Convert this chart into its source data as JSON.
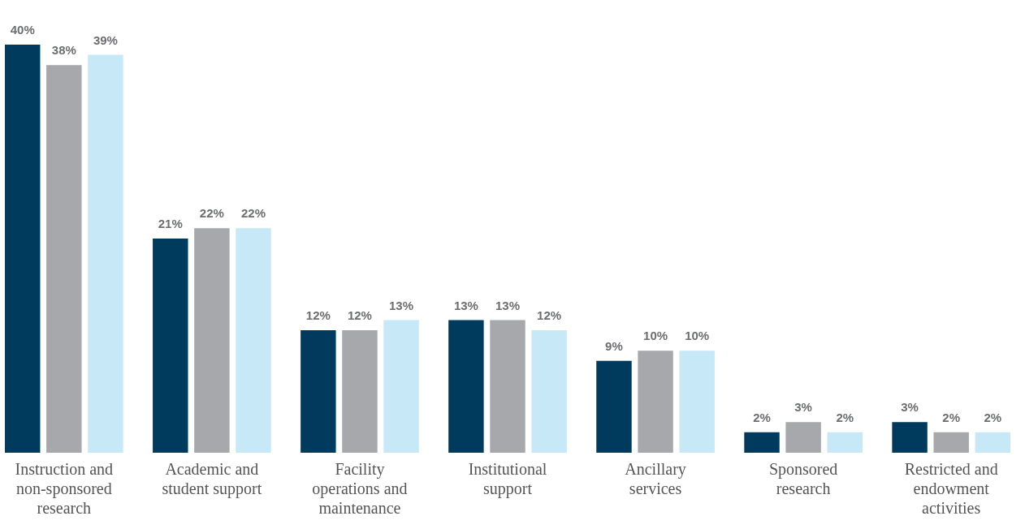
{
  "chart_data": {
    "type": "bar",
    "categories": [
      "Instruction and non-sponsored research",
      "Academic and student support",
      "Facility operations and maintenance",
      "Institutional support",
      "Ancillary services",
      "Sponsored research",
      "Restricted and endowment activities"
    ],
    "series": [
      {
        "color": "#003a5d",
        "values": [
          40,
          21,
          12,
          13,
          9,
          2,
          3
        ],
        "value_labels": [
          "40%",
          "21%",
          "12%",
          "13%",
          "9%",
          "2%",
          "3%"
        ]
      },
      {
        "color": "#a7a8ab",
        "values": [
          38,
          22,
          12,
          13,
          10,
          3,
          2
        ],
        "value_labels": [
          "38%",
          "22%",
          "12%",
          "13%",
          "10%",
          "3%",
          "2%"
        ]
      },
      {
        "color": "#c6e8f7",
        "values": [
          39,
          22,
          13,
          12,
          10,
          2,
          2
        ],
        "value_labels": [
          "39%",
          "22%",
          "13%",
          "12%",
          "10%",
          "2%",
          "2%"
        ]
      }
    ],
    "grid": false,
    "legend": false
  }
}
